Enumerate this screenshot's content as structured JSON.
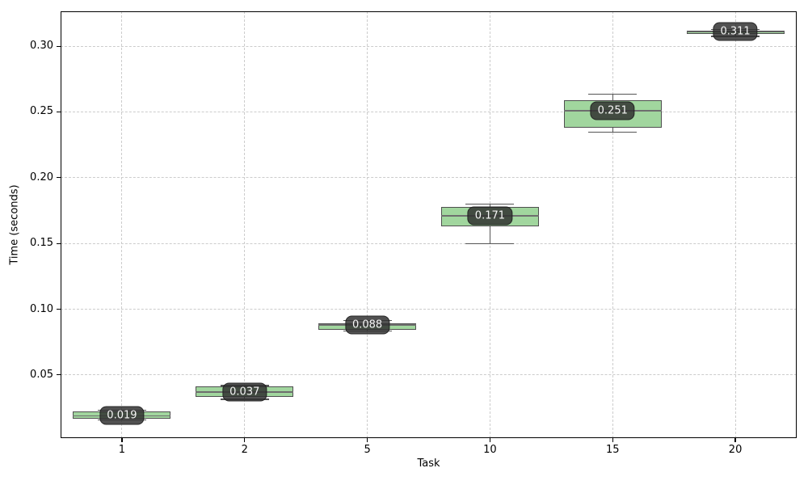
{
  "chart_data": {
    "type": "boxplot",
    "title": "",
    "xlabel": "Task",
    "ylabel": "Time (seconds)",
    "categories": [
      "1",
      "2",
      "5",
      "10",
      "15",
      "20"
    ],
    "ytick_labels": [
      "0.05",
      "0.10",
      "0.15",
      "0.20",
      "0.25",
      "0.30"
    ],
    "ytick_values": [
      0.05,
      0.1,
      0.15,
      0.2,
      0.25,
      0.3
    ],
    "ylim": [
      0.002,
      0.3265
    ],
    "grid": {
      "visible": true,
      "style": "dashed",
      "axes": "both"
    },
    "legend": null,
    "boxes": [
      {
        "category": "1",
        "label": "0.019",
        "median": 0.019,
        "q1": 0.0168,
        "q3": 0.0223,
        "whisker_low": 0.016,
        "whisker_high": 0.023
      },
      {
        "category": "2",
        "label": "0.037",
        "median": 0.037,
        "q1": 0.0335,
        "q3": 0.0415,
        "whisker_low": 0.0315,
        "whisker_high": 0.042
      },
      {
        "category": "5",
        "label": "0.088",
        "median": 0.088,
        "q1": 0.0845,
        "q3": 0.0895,
        "whisker_low": 0.0835,
        "whisker_high": 0.0915
      },
      {
        "category": "10",
        "label": "0.171",
        "median": 0.171,
        "q1": 0.163,
        "q3": 0.178,
        "whisker_low": 0.15,
        "whisker_high": 0.18
      },
      {
        "category": "15",
        "label": "0.251",
        "median": 0.251,
        "q1": 0.238,
        "q3": 0.259,
        "whisker_low": 0.2345,
        "whisker_high": 0.2635
      },
      {
        "category": "20",
        "label": "0.311",
        "median": 0.311,
        "q1": 0.309,
        "q3": 0.3115,
        "whisker_low": 0.3075,
        "whisker_high": 0.3125
      }
    ],
    "colors": {
      "box_fill": "#a1d69e",
      "box_edge": "#4f4f4f",
      "median_line": "#6e6e6e",
      "whisker": "#555555",
      "grid": "#cccccc",
      "spine": "#000000",
      "badge_bg": "#303030",
      "badge_alpha": 0.84,
      "badge_text": "#f5f5f5",
      "background": "#ffffff"
    }
  }
}
